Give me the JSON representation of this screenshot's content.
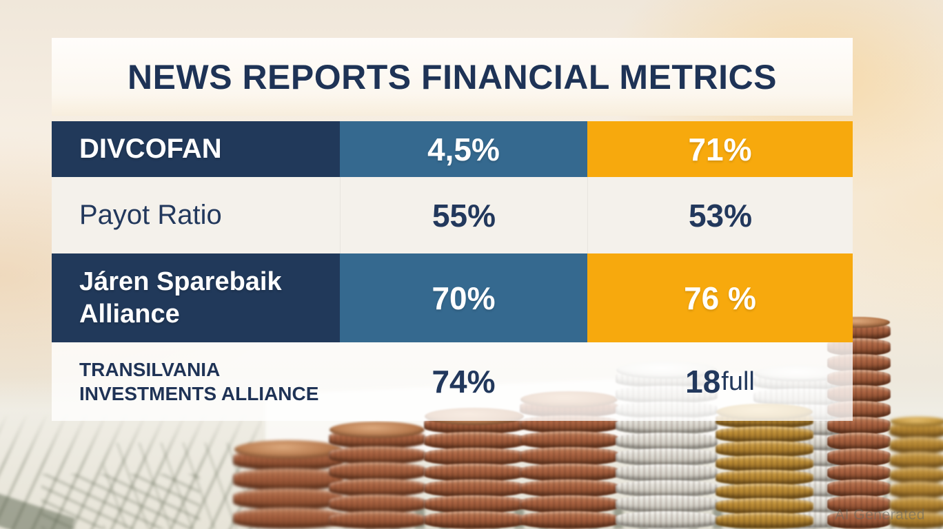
{
  "title": "NEWS REPORTS FINANCIAL METRICS",
  "watermark": "AI Generated",
  "chart_data": {
    "type": "table",
    "title": "NEWS REPORTS FINANCIAL METRICS",
    "rows": [
      [
        "DIVCOFAN",
        "4,5%",
        "71%"
      ],
      [
        "Payot Ratio",
        "55%",
        "53%"
      ],
      [
        "Járen Sparebaik Alliance",
        "70%",
        "76 %"
      ],
      [
        "TRANSILVANIA INVESTMENTS ALLIANCE",
        "74%",
        "18full"
      ]
    ]
  },
  "row4_value2": {
    "bold": "18",
    "suffix": "full"
  },
  "colors": {
    "navy_cell": "#21395a",
    "blue_cell": "#35698f",
    "orange_cell": "#f7a90d",
    "navy_text": "#1f3356",
    "light_row": "#f4f1eb",
    "title_bg": "#fdfbf7"
  }
}
